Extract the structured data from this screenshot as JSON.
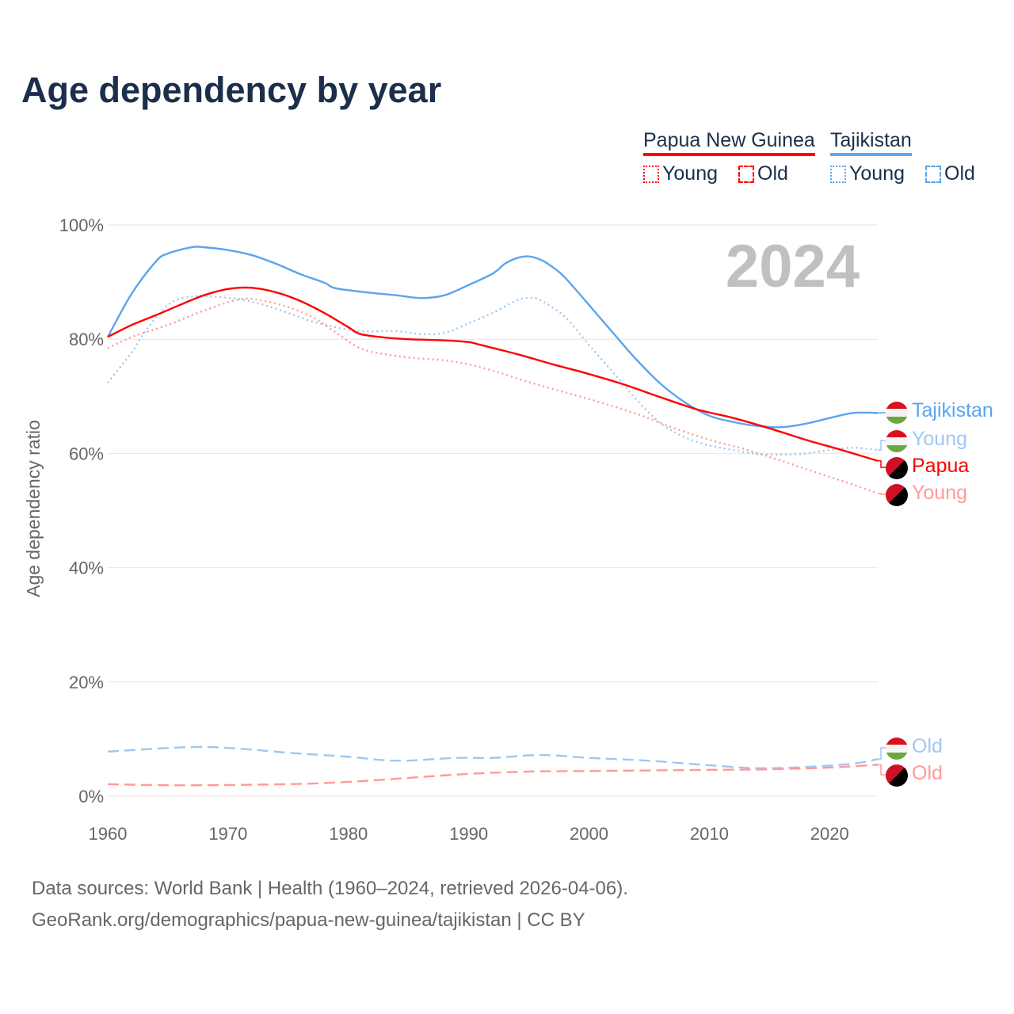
{
  "title": "Age dependency by year",
  "legend": {
    "png": "Papua New Guinea",
    "tjk": "Tajikistan",
    "young": "Young",
    "old": "Old"
  },
  "year_label": "2024",
  "end_labels": {
    "tjk_total": "Tajikistan",
    "tjk_young": "Young",
    "png_total": "Papua",
    "png_young": "Young",
    "tjk_old": "Old",
    "png_old": "Old"
  },
  "source": {
    "line1": "Data sources: World Bank | Health (1960–2024, retrieved 2026-04-06).",
    "line2": "GeoRank.org/demographics/papua-new-guinea/tajikistan | CC BY"
  },
  "colors": {
    "tjk": "#5aa5ee",
    "tjk_light": "#9ec8f2",
    "png": "#ff0000",
    "png_light": "#ff9a9a"
  },
  "chart_data": {
    "type": "line",
    "title": "Age dependency by year",
    "xlabel": "",
    "ylabel": "Age dependency ratio",
    "xlim": [
      1960,
      2024
    ],
    "ylim": [
      0,
      100
    ],
    "x_ticks": [
      1960,
      1970,
      1980,
      1990,
      2000,
      2010,
      2020
    ],
    "y_ticks": [
      0,
      20,
      40,
      60,
      80,
      100
    ],
    "y_tick_labels": [
      "0%",
      "20%",
      "40%",
      "60%",
      "80%",
      "100%"
    ],
    "series": [
      {
        "name": "Tajikistan",
        "key": "tjk_total",
        "color": "#5aa5ee",
        "dash": "",
        "points": [
          [
            1960,
            80.4
          ],
          [
            1962,
            88
          ],
          [
            1964,
            93.6
          ],
          [
            1965,
            95
          ],
          [
            1967,
            96.1
          ],
          [
            1968,
            96.1
          ],
          [
            1970,
            95.6
          ],
          [
            1972,
            94.7
          ],
          [
            1974,
            93.2
          ],
          [
            1976,
            91.4
          ],
          [
            1978,
            89.9
          ],
          [
            1979,
            88.9
          ],
          [
            1982,
            88.1
          ],
          [
            1984,
            87.7
          ],
          [
            1986,
            87.2
          ],
          [
            1988,
            87.7
          ],
          [
            1990,
            89.5
          ],
          [
            1992,
            91.5
          ],
          [
            1993,
            93.2
          ],
          [
            1994,
            94.2
          ],
          [
            1995,
            94.5
          ],
          [
            1996,
            93.9
          ],
          [
            1997,
            92.6
          ],
          [
            1998,
            90.8
          ],
          [
            2000,
            86
          ],
          [
            2002,
            81.1
          ],
          [
            2004,
            76.3
          ],
          [
            2006,
            72.1
          ],
          [
            2008,
            68.9
          ],
          [
            2010,
            66.6
          ],
          [
            2012,
            65.5
          ],
          [
            2014,
            64.8
          ],
          [
            2016,
            64.6
          ],
          [
            2018,
            65.2
          ],
          [
            2020,
            66.2
          ],
          [
            2022,
            67.1
          ],
          [
            2024,
            67.1
          ]
        ]
      },
      {
        "name": "Tajikistan Young",
        "key": "tjk_young",
        "color": "#9ec8f2",
        "dash": "2,4",
        "points": [
          [
            1960,
            72.4
          ],
          [
            1962,
            77.7
          ],
          [
            1963,
            81
          ],
          [
            1965,
            86
          ],
          [
            1967,
            87.5
          ],
          [
            1969,
            87.4
          ],
          [
            1971,
            87
          ],
          [
            1973,
            86
          ],
          [
            1975,
            84.6
          ],
          [
            1977,
            83.1
          ],
          [
            1979,
            82.1
          ],
          [
            1981,
            81.4
          ],
          [
            1984,
            81.4
          ],
          [
            1986,
            80.9
          ],
          [
            1988,
            81.1
          ],
          [
            1990,
            82.8
          ],
          [
            1992,
            84.6
          ],
          [
            1994,
            86.8
          ],
          [
            1995,
            87.2
          ],
          [
            1996,
            86.8
          ],
          [
            1998,
            83.9
          ],
          [
            2000,
            79
          ],
          [
            2002,
            74.2
          ],
          [
            2004,
            69.3
          ],
          [
            2006,
            65.2
          ],
          [
            2008,
            62.8
          ],
          [
            2010,
            61.4
          ],
          [
            2012,
            60.6
          ],
          [
            2014,
            59.9
          ],
          [
            2016,
            59.8
          ],
          [
            2018,
            60
          ],
          [
            2020,
            60.6
          ],
          [
            2022,
            61
          ],
          [
            2024,
            60.6
          ]
        ]
      },
      {
        "name": "Tajikistan Old",
        "key": "tjk_old",
        "color": "#9ec8f2",
        "dash": "14,7",
        "points": [
          [
            1960,
            7.8
          ],
          [
            1967,
            8.6
          ],
          [
            1971,
            8.3
          ],
          [
            1975,
            7.6
          ],
          [
            1980,
            6.9
          ],
          [
            1984,
            6.2
          ],
          [
            1989,
            6.7
          ],
          [
            1992,
            6.7
          ],
          [
            1996,
            7.2
          ],
          [
            2000,
            6.7
          ],
          [
            2005,
            6.2
          ],
          [
            2010,
            5.4
          ],
          [
            2014,
            4.9
          ],
          [
            2018,
            5.1
          ],
          [
            2022,
            5.7
          ],
          [
            2024,
            6.5
          ]
        ]
      },
      {
        "name": "Papua New Guinea",
        "key": "png_total",
        "color": "#ff0000",
        "dash": "",
        "points": [
          [
            1960,
            80.4
          ],
          [
            1962,
            82.5
          ],
          [
            1964,
            84.2
          ],
          [
            1966,
            86
          ],
          [
            1968,
            87.7
          ],
          [
            1970,
            88.8
          ],
          [
            1972,
            89
          ],
          [
            1974,
            88.2
          ],
          [
            1976,
            86.7
          ],
          [
            1978,
            84.6
          ],
          [
            1980,
            82.1
          ],
          [
            1981,
            80.9
          ],
          [
            1983,
            80.3
          ],
          [
            1985,
            80
          ],
          [
            1988,
            79.8
          ],
          [
            1990,
            79.5
          ],
          [
            1991,
            79
          ],
          [
            1994,
            77.4
          ],
          [
            1997,
            75.6
          ],
          [
            2000,
            73.9
          ],
          [
            2003,
            72
          ],
          [
            2006,
            69.8
          ],
          [
            2009,
            67.7
          ],
          [
            2012,
            66.2
          ],
          [
            2015,
            64.4
          ],
          [
            2018,
            62.4
          ],
          [
            2021,
            60.6
          ],
          [
            2024,
            58.7
          ]
        ]
      },
      {
        "name": "Papua New Guinea Young",
        "key": "png_young",
        "color": "#ff9a9a",
        "dash": "2,4",
        "points": [
          [
            1960,
            78.4
          ],
          [
            1962,
            80.4
          ],
          [
            1965,
            82.5
          ],
          [
            1968,
            85
          ],
          [
            1971,
            87
          ],
          [
            1973,
            86.7
          ],
          [
            1975,
            85.6
          ],
          [
            1977,
            83.9
          ],
          [
            1979,
            81.1
          ],
          [
            1981,
            78.4
          ],
          [
            1983,
            77.4
          ],
          [
            1985,
            76.8
          ],
          [
            1988,
            76.3
          ],
          [
            1990,
            75.6
          ],
          [
            1992,
            74.5
          ],
          [
            1995,
            72.5
          ],
          [
            1998,
            70.7
          ],
          [
            2001,
            68.9
          ],
          [
            2004,
            66.9
          ],
          [
            2007,
            64.5
          ],
          [
            2010,
            62.4
          ],
          [
            2013,
            60.7
          ],
          [
            2016,
            58.7
          ],
          [
            2019,
            56.6
          ],
          [
            2022,
            54.5
          ],
          [
            2024,
            53
          ]
        ]
      },
      {
        "name": "Papua New Guinea Old",
        "key": "png_old",
        "color": "#ff9a9a",
        "dash": "14,7",
        "points": [
          [
            1960,
            2.1
          ],
          [
            1966,
            1.9
          ],
          [
            1975,
            2.1
          ],
          [
            1980,
            2.5
          ],
          [
            1985,
            3.2
          ],
          [
            1990,
            3.9
          ],
          [
            1995,
            4.3
          ],
          [
            2000,
            4.4
          ],
          [
            2010,
            4.6
          ],
          [
            2015,
            4.7
          ],
          [
            2020,
            5
          ],
          [
            2024,
            5.5
          ]
        ]
      }
    ]
  }
}
